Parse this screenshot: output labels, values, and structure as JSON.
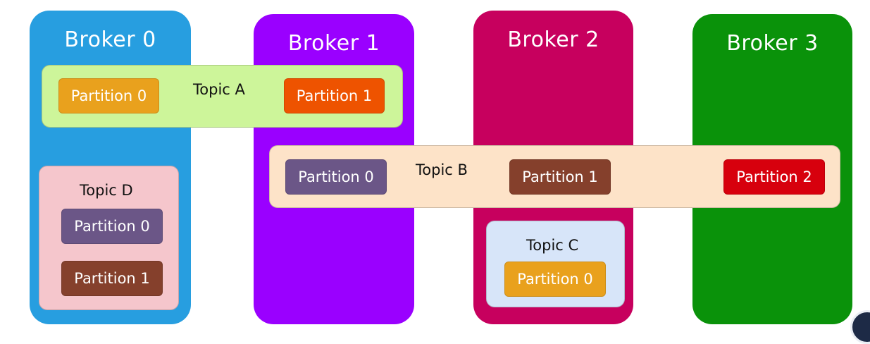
{
  "colors": {
    "broker0": "#279ee0",
    "broker1": "#9a00ff",
    "broker2": "#c7005e",
    "broker3": "#0a920a",
    "topicA": "#cdf59a",
    "topicB": "#fde3c8",
    "topicC": "#d7e5f9",
    "topicD": "#f5c6cc",
    "partOrange": "#e9a11d",
    "partRedOrange": "#ee5300",
    "partPurple": "#6b5687",
    "partBrown": "#85402c",
    "partRed": "#d7000d"
  },
  "brokers": [
    {
      "title": "Broker 0"
    },
    {
      "title": "Broker 1"
    },
    {
      "title": "Broker 2"
    },
    {
      "title": "Broker 3"
    }
  ],
  "topics": {
    "a": {
      "title": "Topic A",
      "partitions": [
        "Partition 0",
        "Partition 1"
      ]
    },
    "b": {
      "title": "Topic B",
      "partitions": [
        "Partition 0",
        "Partition 1",
        "Partition 2"
      ]
    },
    "c": {
      "title": "Topic C",
      "partitions": [
        "Partition 0"
      ]
    },
    "d": {
      "title": "Topic D",
      "partitions": [
        "Partition 0",
        "Partition 1"
      ]
    }
  }
}
